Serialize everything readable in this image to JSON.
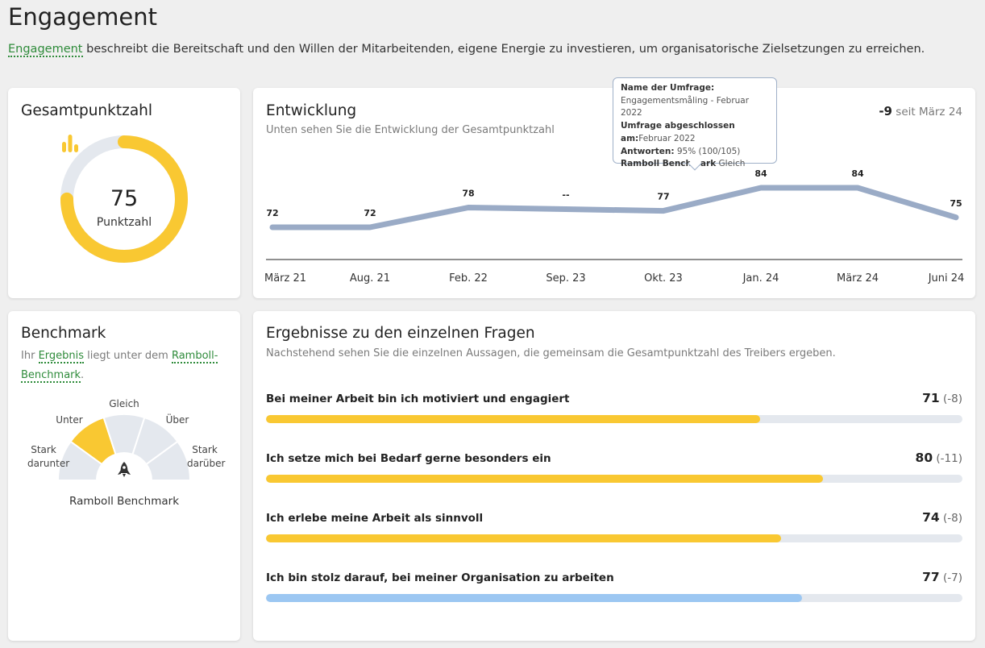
{
  "page": {
    "title": "Engagement",
    "description_term": "Engagement",
    "description_rest": " beschreibt die Bereitschaft und den Willen der Mitarbeitenden, eigene Energie zu investieren, um organisatorische Zielsetzungen zu erreichen."
  },
  "score_card": {
    "title": "Gesamtpunktzahl",
    "value": "75",
    "label": "Punktzahl",
    "score_fraction": 0.75,
    "icon": "bar-chart-icon",
    "color": "#f9c832",
    "track_color": "#e4e8ee"
  },
  "trend_card": {
    "title": "Entwicklung",
    "subtitle": "Unten sehen Sie die Entwicklung der Gesamtpunktzahl",
    "delta_value": "-9",
    "delta_text": " seit März 24",
    "tooltip": {
      "name_label": "Name der Umfrage:",
      "name_value": "Engagementsmåling - Februar 2022",
      "completed_label_1": "Umfrage abgeschlossen",
      "completed_label_2": "am:",
      "completed_value": "Februar 2022",
      "responses_label": "Antworten:",
      "responses_value": " 95% (100/105)",
      "benchmark_label": "Ramboll Benchmark",
      "benchmark_value": " Gleich"
    }
  },
  "chart_data": {
    "type": "line",
    "categories": [
      "März 21",
      "Aug. 21",
      "Feb. 22",
      "Sep. 23",
      "Okt. 23",
      "Jan. 24",
      "März 24",
      "Juni 24"
    ],
    "values": [
      72,
      72,
      78,
      null,
      77,
      84,
      84,
      75
    ],
    "data_labels": [
      "72",
      "72",
      "78",
      "--",
      "77",
      "84",
      "84",
      "75"
    ],
    "line_color": "#9aabc6",
    "grid": false
  },
  "benchmark_card": {
    "title": "Benchmark",
    "text_1": "Ihr ",
    "term_1": "Ergebnis",
    "text_2": " liegt unter dem ",
    "term_2": "Ramboll-Benchmark",
    "text_3": ".",
    "segments": [
      "Stark darunter",
      "Unter",
      "Gleich",
      "Über",
      "Stark darüber"
    ],
    "label_stark_darunter_1": "Stark",
    "label_stark_darunter_2": "darunter",
    "label_unter": "Unter",
    "label_gleich": "Gleich",
    "label_ueber": "Über",
    "label_stark_darueber_1": "Stark",
    "label_stark_darueber_2": "darüber",
    "active_segment": "Unter",
    "caption": "Ramboll Benchmark",
    "icon": "rocket-icon",
    "active_color": "#f9c832",
    "inactive_color": "#e4e8ee"
  },
  "questions_card": {
    "title": "Ergebnisse zu den einzelnen Fragen",
    "subtitle": "Nachstehend sehen Sie die einzelnen Aussagen, die gemeinsam die Gesamtpunktzahl des Treibers ergeben.",
    "items": [
      {
        "text": "Bei meiner Arbeit bin ich motiviert und engagiert",
        "score": "71",
        "delta": " (-8)",
        "value": 71,
        "color": "#f9c832"
      },
      {
        "text": "Ich setze mich bei Bedarf gerne besonders ein",
        "score": "80",
        "delta": " (-11)",
        "value": 80,
        "color": "#f9c832"
      },
      {
        "text": "Ich erlebe meine Arbeit als sinnvoll",
        "score": "74",
        "delta": " (-8)",
        "value": 74,
        "color": "#f9c832"
      },
      {
        "text": "Ich bin stolz darauf, bei meiner Organisation zu arbeiten",
        "score": "77",
        "delta": " (-7)",
        "value": 77,
        "color": "#9cc7f2"
      }
    ]
  }
}
